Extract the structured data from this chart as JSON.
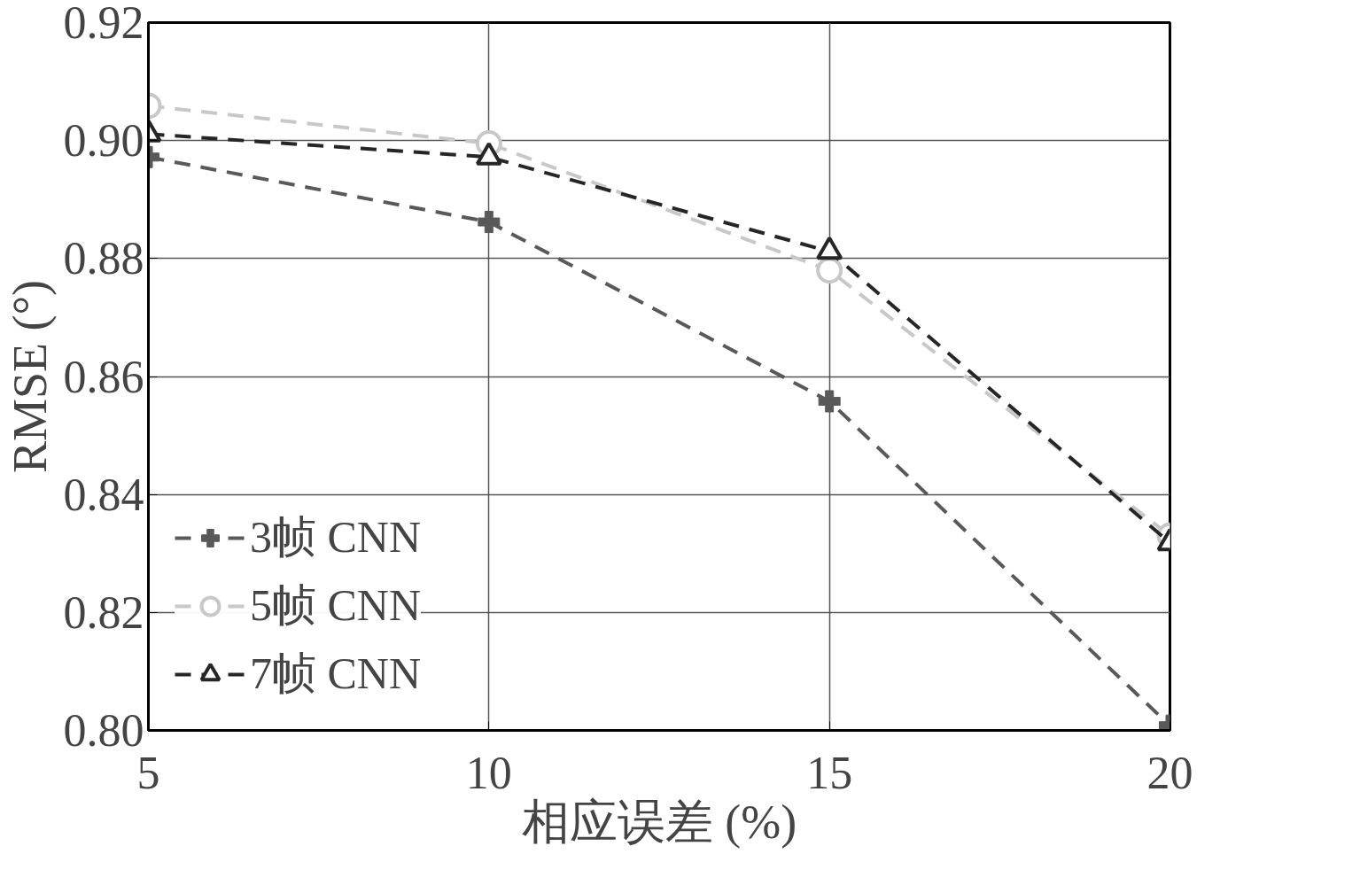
{
  "chart_data": {
    "type": "line",
    "xlabel": "相应误差 (%)",
    "ylabel": "RMSE (°)",
    "x": [
      5,
      10,
      15,
      20
    ],
    "series": [
      {
        "name": "3帧 CNN",
        "color": "#595959",
        "marker": "cross",
        "values": [
          0.8972,
          0.8862,
          0.8558,
          0.8008
        ]
      },
      {
        "name": "5帧 CNN",
        "color": "#c8c8c8",
        "marker": "circle",
        "values": [
          0.9059,
          0.8995,
          0.878,
          0.833
        ]
      },
      {
        "name": "7帧 CNN",
        "color": "#262626",
        "marker": "triangle",
        "values": [
          0.9011,
          0.8972,
          0.8812,
          0.8318
        ]
      }
    ],
    "xlim": [
      5,
      20
    ],
    "xticks": [
      5,
      10,
      15,
      20
    ],
    "ylim": [
      0.8,
      0.92
    ],
    "yticks": [
      {
        "value": 0.8,
        "label": "0.80"
      },
      {
        "value": 0.82,
        "label": "0.82"
      },
      {
        "value": 0.84,
        "label": "0.84"
      },
      {
        "value": 0.86,
        "label": "0.86"
      },
      {
        "value": 0.88,
        "label": "0.88"
      },
      {
        "value": 0.9,
        "label": "0.90"
      },
      {
        "value": 0.92,
        "label": "0.92"
      }
    ],
    "grid": true,
    "legend": "bottom left",
    "line_style": "dashed"
  }
}
